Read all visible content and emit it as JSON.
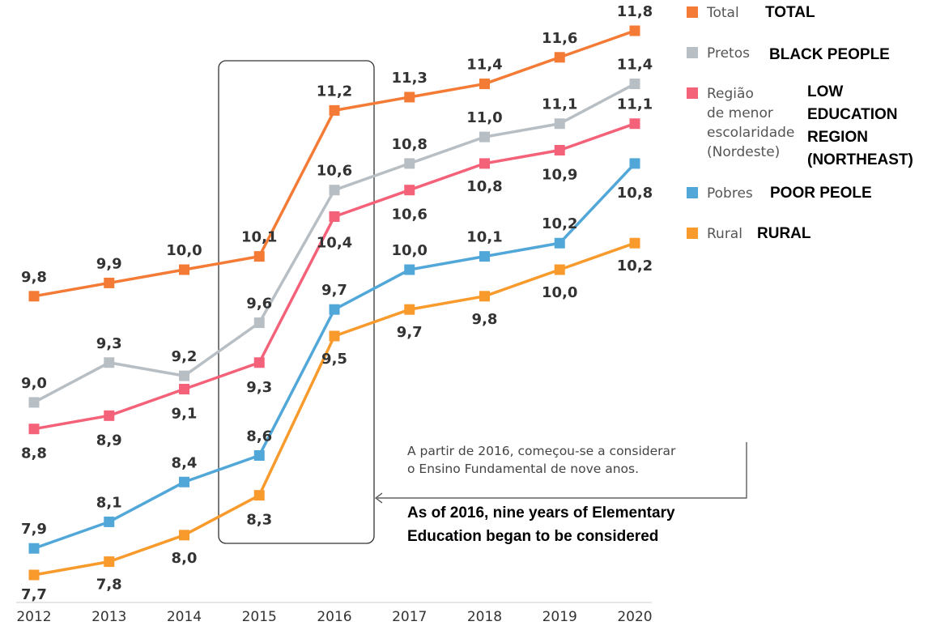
{
  "chart_data": {
    "type": "line",
    "categories": [
      "2012",
      "2013",
      "2014",
      "2015",
      "2016",
      "2017",
      "2018",
      "2019",
      "2020"
    ],
    "ylim": [
      7.3,
      12.0
    ],
    "grid": false,
    "legend_position": "top-right",
    "series": [
      {
        "name": "Total",
        "name_en": "TOTAL",
        "color": "#f47b35",
        "values": [
          9.8,
          9.9,
          10.0,
          10.1,
          11.2,
          11.3,
          11.4,
          11.6,
          11.8
        ],
        "labels": [
          "9,8",
          "9,9",
          "10,0",
          "10,1",
          "11,2",
          "11,3",
          "11,4",
          "11,6",
          "11,8"
        ]
      },
      {
        "name": "Pretos",
        "name_en": "BLACK PEOPLE",
        "color": "#b8bfc4",
        "values": [
          9.0,
          9.3,
          9.2,
          9.6,
          10.6,
          10.8,
          11.0,
          11.1,
          11.4
        ],
        "labels": [
          "9,0",
          "9,3",
          "9,2",
          "9,6",
          "10,6",
          "10,8",
          "11,0",
          "11,1",
          "11,4"
        ]
      },
      {
        "name": "Região de menor escolaridade (Nordeste)",
        "name_en": "LOW EDUCATION REGION (NORTHEAST)",
        "color": "#f4627a",
        "values": [
          8.8,
          8.9,
          9.1,
          9.3,
          10.4,
          10.6,
          10.8,
          10.9,
          11.1
        ],
        "labels": [
          "8,8",
          "8,9",
          "9,1",
          "9,3",
          "10,4",
          "10,6",
          "10,8",
          "10,9",
          "11,1"
        ]
      },
      {
        "name": "Pobres",
        "name_en": "POOR PEOLE",
        "color": "#52a7d9",
        "values": [
          7.9,
          8.1,
          8.4,
          8.6,
          9.7,
          10.0,
          10.1,
          10.2,
          10.8
        ],
        "labels": [
          "7,9",
          "8,1",
          "8,4",
          "8,6",
          "9,7",
          "10,0",
          "10,1",
          "10,2",
          "10,8"
        ]
      },
      {
        "name": "Rural",
        "name_en": "RURAL",
        "color": "#f89a2c",
        "values": [
          7.7,
          7.8,
          8.0,
          8.3,
          9.5,
          9.7,
          9.8,
          10.0,
          10.2
        ],
        "labels": [
          "7,7",
          "7,8",
          "8,0",
          "8,3",
          "9,5",
          "9,7",
          "9,8",
          "10,0",
          "10,2"
        ]
      }
    ]
  },
  "legend": {
    "items": [
      {
        "pt": "Total",
        "en": "TOTAL",
        "color": "#f47b35"
      },
      {
        "pt": "Pretos",
        "en": "BLACK PEOPLE",
        "color": "#b8bfc4"
      },
      {
        "pt": "Região\nde menor\nescolaridade\n(Nordeste)",
        "en": "LOW\nEDUCATION\nREGION\n(NORTHEAST)",
        "color": "#f4627a"
      },
      {
        "pt": "Pobres",
        "en": "POOR PEOLE",
        "color": "#52a7d9"
      },
      {
        "pt": "Rural",
        "en": "RURAL",
        "color": "#f89a2c"
      }
    ]
  },
  "annotation": {
    "pt_line1": "A partir de 2016, começou-se a considerar",
    "pt_line2": "o Ensino Fundamental de nove anos.",
    "en_line1": "As of 2016, nine years of Elementary",
    "en_line2": "Education began to be considered"
  }
}
